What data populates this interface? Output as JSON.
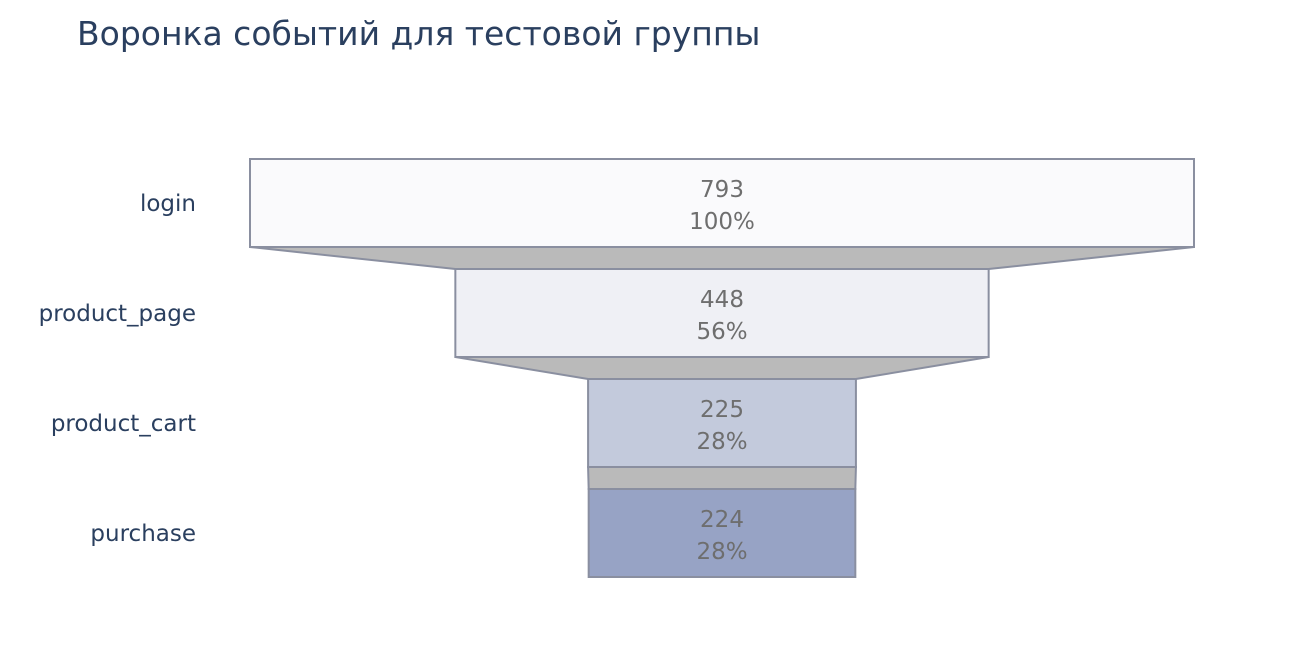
{
  "chart_data": {
    "type": "funnel",
    "title": "Воронка событий для тестовой группы",
    "categories": [
      "login",
      "product_page",
      "product_cart",
      "purchase"
    ],
    "values": [
      793,
      448,
      225,
      224
    ],
    "percent_labels": [
      "100%",
      "56%",
      "28%",
      "28%"
    ],
    "colors": [
      "#fafafc",
      "#eff0f5",
      "#c3cadc",
      "#97a3c5"
    ],
    "connector_color": "#bababa",
    "border_color": "#8a8fa0",
    "label_color": "#6e6e6e",
    "category_label_color": "#2a3f5f",
    "title_color": "#2a3f5f"
  }
}
